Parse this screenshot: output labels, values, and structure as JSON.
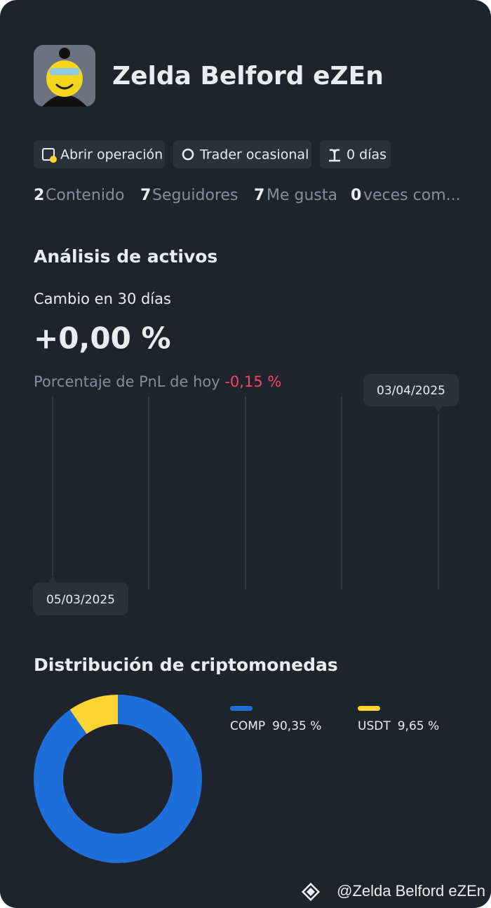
{
  "profile": {
    "name": "Zelda Belford eZEn",
    "tags": [
      "Abrir operación",
      "Trader ocasional",
      "0 días"
    ],
    "stats": [
      {
        "count": 2,
        "label": "Contenido"
      },
      {
        "count": 7,
        "label": "Seguidores"
      },
      {
        "count": 7,
        "label": "Me gusta"
      },
      {
        "count": 0,
        "label": "veces com..."
      }
    ]
  },
  "assets": {
    "title": "Análisis de activos",
    "change_label": "Cambio en 30 días",
    "change_value": "+0,00 %",
    "pnl_label": "Porcentaje de PnL de hoy",
    "pnl_value": "-0,15 %",
    "start_date": "05/03/2025",
    "end_date": "03/04/2025"
  },
  "distribution": {
    "type": "pie",
    "title": "Distribución de criptomonedas",
    "categories": [
      "COMP",
      "USDT"
    ],
    "values": [
      90.35,
      9.65
    ],
    "value_labels": [
      "90,35 %",
      "9,65 %"
    ],
    "colors": [
      "#1e6fd9",
      "#fcd535"
    ]
  },
  "footer": {
    "handle": "@Zelda Belford eZEn"
  }
}
